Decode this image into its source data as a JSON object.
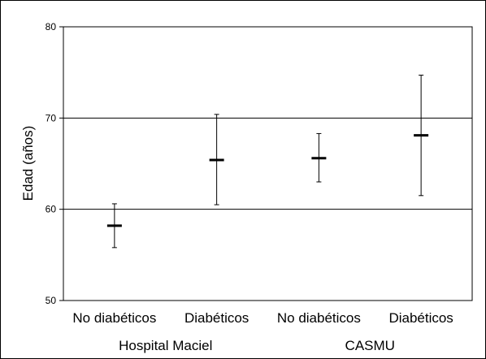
{
  "chart_data": {
    "type": "errorbar",
    "ylabel": "Edad (años)",
    "ylim": [
      50,
      80
    ],
    "yticks": [
      50,
      60,
      70,
      80
    ],
    "grid": "horizontal at 60, 70 and 80",
    "categories": [
      "No diabéticos",
      "Diabéticos",
      "No diabéticos",
      "Diabéticos"
    ],
    "groups": [
      {
        "label": "Hospital Maciel",
        "categories": [
          0,
          1
        ]
      },
      {
        "label": "CASMU",
        "categories": [
          2,
          3
        ]
      }
    ],
    "points": [
      {
        "mean": 58.2,
        "low": 55.8,
        "high": 60.6
      },
      {
        "mean": 65.4,
        "low": 60.5,
        "high": 70.4
      },
      {
        "mean": 65.6,
        "low": 63.0,
        "high": 68.3
      },
      {
        "mean": 68.1,
        "low": 61.5,
        "high": 74.7
      }
    ]
  }
}
